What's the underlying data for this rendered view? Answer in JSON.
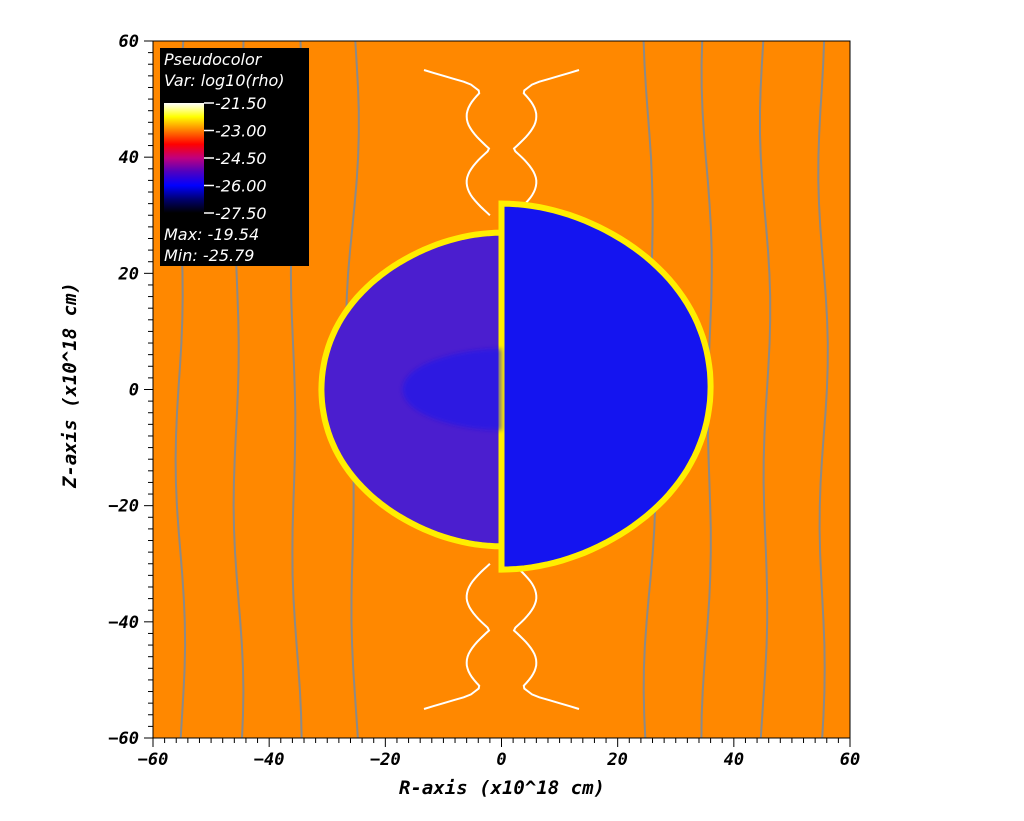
{
  "chart_data": {
    "type": "heatmap",
    "plot_kind": "Pseudocolor",
    "title": "",
    "xlabel": "R-axis (x10^18 cm)",
    "ylabel": "Z-axis (x10^18 cm)",
    "xlim": [
      -60,
      60
    ],
    "ylim": [
      -60,
      60
    ],
    "x_ticks": [
      -60,
      -40,
      -20,
      0,
      20,
      40,
      60
    ],
    "y_ticks": [
      -60,
      -40,
      -20,
      0,
      20,
      40,
      60
    ],
    "x_tick_labels": [
      "−60",
      "−40",
      "−20",
      "0",
      "20",
      "40",
      "60"
    ],
    "y_tick_labels": [
      "−60",
      "−40",
      "−20",
      "0",
      "20",
      "40",
      "60"
    ],
    "legend": {
      "placement": "top-left",
      "title": "Pseudocolor",
      "variable": "Var: log10(rho)",
      "ticks": [
        "-21.50",
        "-23.00",
        "-24.50",
        "-26.00",
        "-27.50"
      ],
      "max_label": "Max: -19.54",
      "min_label": "Min: -25.79",
      "colormap": [
        "#ffffff",
        "#ffff00",
        "#ff7f00",
        "#ff0000",
        "#c0007f",
        "#5000c0",
        "#0000ff",
        "#00006f",
        "#000000"
      ]
    },
    "regions": {
      "background_color": "#ff8800",
      "left_bubble_color": "#4b1ecf",
      "right_bubble_color": "#1414f0",
      "rim_color": "#ffee00",
      "left_bubble": {
        "r_min": -31,
        "r_max": 0,
        "z_min": -27,
        "z_max": 27
      },
      "right_bubble": {
        "r_min": 0,
        "r_max": 36,
        "z_min": -31,
        "z_max": 32
      }
    },
    "grid": false
  }
}
